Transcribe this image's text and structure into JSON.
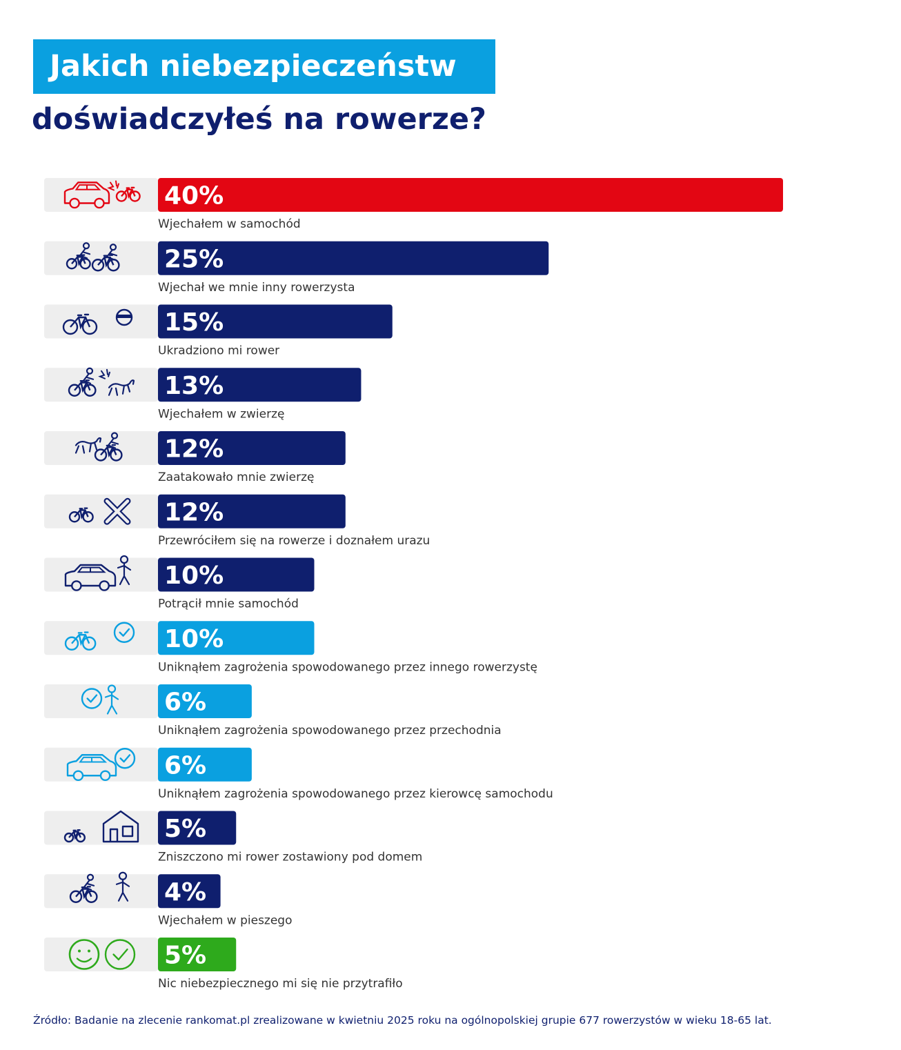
{
  "title": {
    "line1": "Jakich niebezpieczeństw",
    "line2": "doświadczyłeś na rowerze?"
  },
  "source": "Źródło: Badanie na zlecenie rankomat.pl zrealizowane w kwietniu 2025 roku na ogólnopolskiej grupie 677 rowerzystów w wieku 18-65 lat.",
  "colors": {
    "red": "#e30613",
    "navy": "#0f1f6e",
    "light_blue": "#0aa0e0",
    "green": "#2eaa1c",
    "icon_bg": "#eeeeee",
    "label": "#333333"
  },
  "chart_data": {
    "type": "bar",
    "orientation": "horizontal",
    "categories": [
      "Wjechałem w samochód",
      "Wjechał we mnie inny rowerzysta",
      "Ukradziono mi rower",
      "Wjechałem w zwierzę",
      "Zaatakowało mnie zwierzę",
      "Przewróciłem się na rowerze i doznałem urazu",
      "Potrącił mnie samochód",
      "Uniknąłem zagrożenia spowodowanego przez innego rowerzystę",
      "Uniknąłem zagrożenia spowodowanego przez przechodnia",
      "Uniknąłem zagrożenia spowodowanego przez kierowcę samochodu",
      "Zniszczono mi rower zostawiony pod domem",
      "Wjechałem w pieszego",
      "Nic niebezpiecznego mi się nie przytrafiło"
    ],
    "values": [
      40,
      25,
      15,
      13,
      12,
      12,
      10,
      10,
      6,
      6,
      5,
      4,
      5
    ],
    "value_labels": [
      "40%",
      "25%",
      "15%",
      "13%",
      "12%",
      "12%",
      "10%",
      "10%",
      "6%",
      "6%",
      "5%",
      "4%",
      "5%"
    ],
    "bar_colors": [
      "red",
      "navy",
      "navy",
      "navy",
      "navy",
      "navy",
      "navy",
      "light_blue",
      "light_blue",
      "light_blue",
      "navy",
      "navy",
      "green"
    ],
    "icons": [
      "car-bike-crash-icon",
      "cyclist-collision-icon",
      "bike-thief-icon",
      "cyclist-hits-animal-icon",
      "animal-attacks-cyclist-icon",
      "bike-injury-bandage-icon",
      "car-hits-person-icon",
      "bike-check-icon",
      "pedestrian-check-icon",
      "car-check-icon",
      "bike-house-icon",
      "cyclist-hits-pedestrian-icon",
      "smiley-check-icon"
    ],
    "xlim": [
      0,
      40
    ],
    "grid": false,
    "legend": "none"
  }
}
